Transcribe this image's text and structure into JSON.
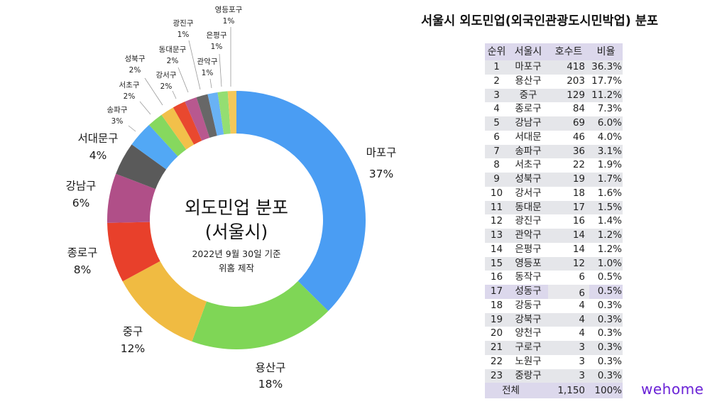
{
  "title": "서울시 외도민업(외국인관광도시민박업) 분포",
  "center": {
    "title_line1": "외도민업 분포",
    "title_line2": "(서울시)",
    "date": "2022년 9월 30일 기준",
    "maker": "위홈 제작"
  },
  "logo": "wehome",
  "chart_data": {
    "type": "pie",
    "subtype": "donut",
    "title": "외도민업 분포 (서울시)",
    "subtitle": "2022년 9월 30일 기준 · 위홈 제작",
    "categories": [
      "마포구",
      "용산구",
      "중구",
      "종로구",
      "강남구",
      "서대문구",
      "송파구",
      "서초구",
      "성북구",
      "강서구",
      "동대문구",
      "광진구",
      "관악구",
      "은평구",
      "영등포구"
    ],
    "values": [
      418,
      203,
      129,
      84,
      69,
      46,
      36,
      22,
      19,
      18,
      17,
      16,
      14,
      14,
      12
    ],
    "percent_labels": [
      "37%",
      "18%",
      "12%",
      "8%",
      "6%",
      "4%",
      "3%",
      "2%",
      "2%",
      "2%",
      "2%",
      "1%",
      "1%",
      "1%",
      "1%"
    ],
    "colors": [
      "#4a9df3",
      "#7fd656",
      "#f0bb42",
      "#e8402b",
      "#b04f88",
      "#5a5a5a",
      "#52a8f5",
      "#86d85e",
      "#f2c04a",
      "#e9482f",
      "#b8588f",
      "#676767",
      "#69b2f5",
      "#94de72",
      "#f4c85a"
    ],
    "start_angle": "12 o'clock, clockwise",
    "legend": "none (callout labels)"
  },
  "table": {
    "headers": {
      "rank": "순위",
      "district": "서울시",
      "count": "호수트",
      "ratio": "비율"
    },
    "rows": [
      {
        "rank": "1",
        "district": "마포구",
        "count": "418",
        "ratio": "36.3%"
      },
      {
        "rank": "2",
        "district": "용산구",
        "count": "203",
        "ratio": "17.7%"
      },
      {
        "rank": "3",
        "district": "중구",
        "count": "129",
        "ratio": "11.2%"
      },
      {
        "rank": "4",
        "district": "종로구",
        "count": "84",
        "ratio": "7.3%"
      },
      {
        "rank": "5",
        "district": "강남구",
        "count": "69",
        "ratio": "6.0%"
      },
      {
        "rank": "6",
        "district": "서대문",
        "count": "46",
        "ratio": "4.0%"
      },
      {
        "rank": "7",
        "district": "송파구",
        "count": "36",
        "ratio": "3.1%"
      },
      {
        "rank": "8",
        "district": "서초구",
        "count": "22",
        "ratio": "1.9%"
      },
      {
        "rank": "9",
        "district": "성북구",
        "count": "19",
        "ratio": "1.7%"
      },
      {
        "rank": "10",
        "district": "강서구",
        "count": "18",
        "ratio": "1.6%"
      },
      {
        "rank": "11",
        "district": "동대문",
        "count": "17",
        "ratio": "1.5%"
      },
      {
        "rank": "12",
        "district": "광진구",
        "count": "16",
        "ratio": "1.4%"
      },
      {
        "rank": "13",
        "district": "관악구",
        "count": "14",
        "ratio": "1.2%"
      },
      {
        "rank": "14",
        "district": "은평구",
        "count": "14",
        "ratio": "1.2%"
      },
      {
        "rank": "15",
        "district": "영등포",
        "count": "12",
        "ratio": "1.0%"
      },
      {
        "rank": "16",
        "district": "동작구",
        "count": "6",
        "ratio": "0.5%"
      },
      {
        "rank": "17",
        "district": "성동구",
        "count": "6",
        "ratio": "0.5%",
        "highlighted": true
      },
      {
        "rank": "18",
        "district": "강동구",
        "count": "4",
        "ratio": "0.3%"
      },
      {
        "rank": "19",
        "district": "강북구",
        "count": "4",
        "ratio": "0.3%"
      },
      {
        "rank": "20",
        "district": "양천구",
        "count": "4",
        "ratio": "0.3%"
      },
      {
        "rank": "21",
        "district": "구로구",
        "count": "3",
        "ratio": "0.3%"
      },
      {
        "rank": "22",
        "district": "노원구",
        "count": "3",
        "ratio": "0.3%"
      },
      {
        "rank": "23",
        "district": "중랑구",
        "count": "3",
        "ratio": "0.3%"
      }
    ],
    "total": {
      "label": "전체",
      "count": "1,150",
      "ratio": "100%"
    }
  }
}
